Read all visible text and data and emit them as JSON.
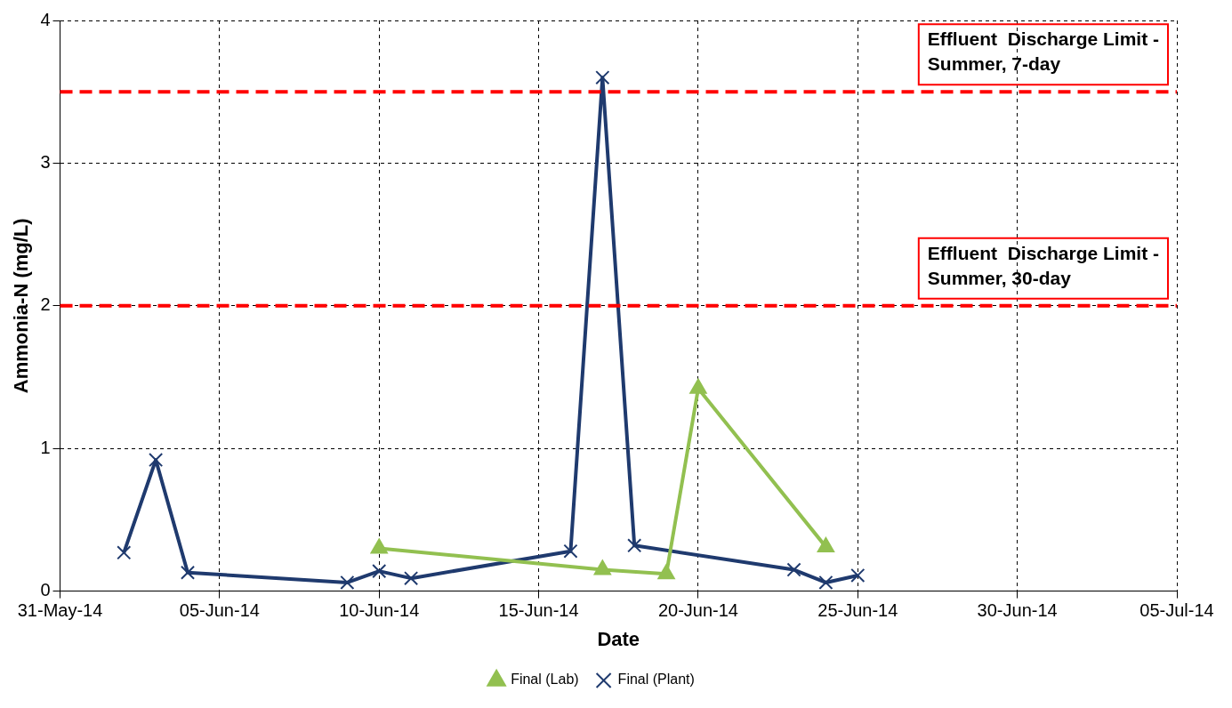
{
  "chart_data": {
    "type": "line",
    "xlabel": "Date",
    "ylabel": "Ammonia-N (mg/L)",
    "xlim": [
      "--05-31",
      "--07-05"
    ],
    "xticks": [
      {
        "value": "--05-31",
        "label": "31-May-14"
      },
      {
        "value": "--06-05",
        "label": "05-Jun-14"
      },
      {
        "value": "--06-10",
        "label": "10-Jun-14"
      },
      {
        "value": "--06-15",
        "label": "15-Jun-14"
      },
      {
        "value": "--06-20",
        "label": "20-Jun-14"
      },
      {
        "value": "--06-25",
        "label": "25-Jun-14"
      },
      {
        "value": "--06-30",
        "label": "30-Jun-14"
      },
      {
        "value": "--07-05",
        "label": "05-Jul-14"
      }
    ],
    "ylim": [
      0,
      4
    ],
    "yticks": [
      0,
      1,
      2,
      3,
      4
    ],
    "grid": true,
    "legend": "bottom",
    "series": [
      {
        "name": "Final (Lab)",
        "color": "#92c050",
        "marker": "triangle",
        "x": [
          "--06-10",
          "--06-17",
          "--06-19",
          "--06-20",
          "--06-24"
        ],
        "values": [
          0.3,
          0.15,
          0.12,
          1.42,
          0.31
        ]
      },
      {
        "name": "Final (Plant)",
        "color": "#1f3a6e",
        "marker": "cross",
        "x": [
          "--06-02",
          "--06-03",
          "--06-04",
          "--06-09",
          "--06-10",
          "--06-11",
          "--06-16",
          "--06-17",
          "--06-18",
          "--06-23",
          "--06-24",
          "--06-25"
        ],
        "values": [
          0.27,
          0.92,
          0.13,
          0.06,
          0.14,
          0.09,
          0.28,
          3.6,
          0.32,
          0.15,
          0.06,
          0.11
        ]
      }
    ],
    "ref_lines": [
      {
        "axis": "y",
        "value": 3.5,
        "label": "Effluent  Discharge Limit - Summer, 7-day",
        "color": "#ff0000",
        "line_style": "dashed"
      },
      {
        "axis": "y",
        "value": 2,
        "label": "Effluent  Discharge Limit - Summer, 30-day",
        "color": "#ff0000",
        "line_style": "dashed"
      }
    ]
  }
}
